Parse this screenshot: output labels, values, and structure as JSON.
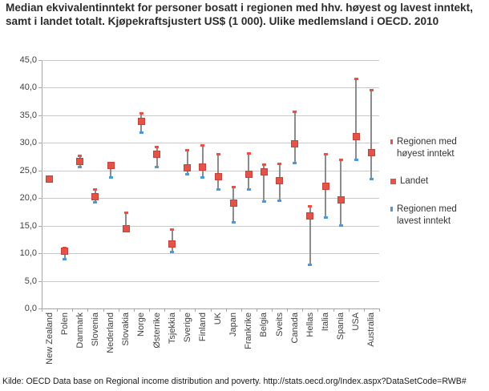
{
  "title": "Median ekvivalentinntekt for personer bosatt i regionen med hhv. høyest og lavest inntekt, samt i landet totalt. Kjøpekraftsjustert US$ (1 000). Ulike medlemsland i OECD. 2010",
  "source": "Kilde: OECD Data base on Regional income distribution and poverty. http://stats.oecd.org/Index.aspx?DataSetCode=RWB#",
  "legend": {
    "items": [
      {
        "label": "Regionen med høyest inntekt",
        "marker": "red-tick"
      },
      {
        "label": "Landet",
        "marker": "red-square"
      },
      {
        "label": "Regionen med lavest inntekt",
        "marker": "blue-tick"
      }
    ]
  },
  "colors": {
    "landet_red": "#e25348",
    "high_red": "#e25348",
    "low_blue": "#4f97d6",
    "range_line_gray": "#8c8c8c",
    "grid_gray": "#c9c9c9",
    "axis_gray": "#a6a6a6"
  },
  "chart_data": {
    "type": "scatter",
    "subtype": "high-low-range-with-point",
    "title": "Median ekvivalentinntekt for personer bosatt i regionen med hhv. høyest og lavest inntekt, samt i landet totalt. Kjøpekraftsjustert US$ (1 000). Ulike medlemsland i OECD. 2010",
    "xlabel": "",
    "ylabel": "",
    "ylim": [
      0,
      45
    ],
    "ytick_step": 5,
    "ytick_values": [
      0,
      5,
      10,
      15,
      20,
      25,
      30,
      35,
      40,
      45
    ],
    "ytick_labels": [
      "0,0",
      "5,0",
      "10,0",
      "15,0",
      "20,0",
      "25,0",
      "30,0",
      "35,0",
      "40,0",
      "45,0"
    ],
    "grid": true,
    "legend_position": "right",
    "categories": [
      "New Zealand",
      "Polen",
      "Danmark",
      "Slovenia",
      "Nederland",
      "Slovakia",
      "Norge",
      "Østerrike",
      "Tsjekkia",
      "Sverige",
      "Finland",
      "UK",
      "Japan",
      "Frankrike",
      "Belgia",
      "Sveits",
      "Canada",
      "Hellas",
      "Italia",
      "Spania",
      "USA",
      "Australia"
    ],
    "series": [
      {
        "name": "Regionen med høyest inntekt",
        "values": [
          null,
          11.0,
          27.7,
          21.5,
          26.4,
          17.4,
          35.3,
          29.3,
          14.3,
          28.6,
          29.5,
          28.0,
          22.0,
          28.1,
          26.0,
          26.2,
          35.6,
          18.5,
          27.9,
          27.0,
          41.6,
          39.6
        ]
      },
      {
        "name": "Landet",
        "values": [
          23.4,
          10.4,
          26.6,
          20.3,
          25.9,
          14.5,
          33.9,
          28.0,
          11.7,
          25.5,
          25.6,
          23.9,
          19.1,
          24.3,
          24.7,
          23.1,
          29.9,
          16.7,
          22.1,
          19.6,
          31.2,
          28.2
        ]
      },
      {
        "name": "Regionen med lavest inntekt",
        "values": [
          null,
          9.0,
          25.6,
          19.3,
          23.8,
          14.0,
          31.9,
          25.6,
          10.3,
          24.3,
          23.8,
          21.5,
          15.6,
          21.6,
          19.4,
          19.5,
          26.4,
          7.9,
          16.5,
          15.0,
          27.0,
          23.5
        ]
      }
    ]
  }
}
